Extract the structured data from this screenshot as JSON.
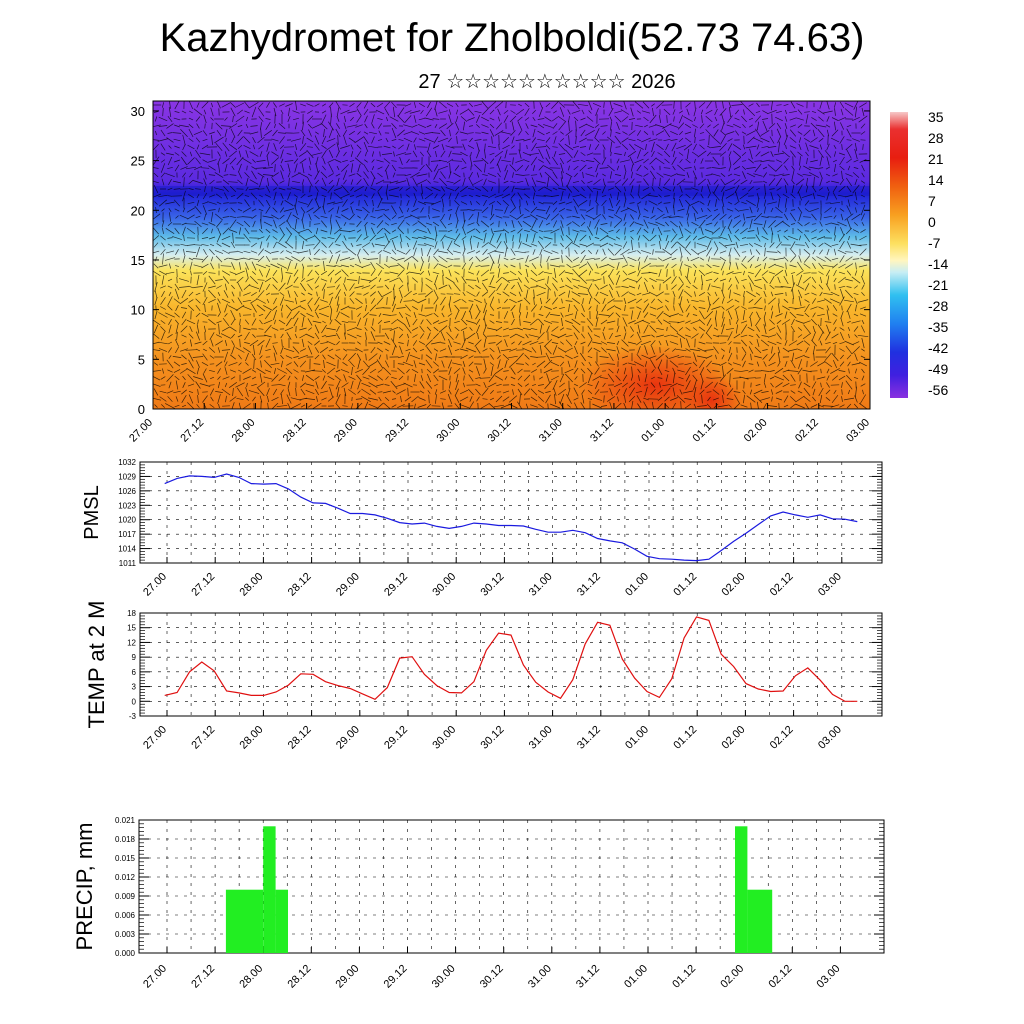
{
  "page": {
    "title": "Kazhydromet for Zholboldi(52.73 74.63)",
    "subtitle": "27 ☆☆☆☆☆☆☆☆☆☆ 2026"
  },
  "colors": {
    "pmsl_line": "#1a1adf",
    "temp_line": "#e01010",
    "precip_bar": "#22ee22",
    "wind_vectors": "#000000"
  },
  "chart_data": [
    {
      "type": "heatmap",
      "name": "cross-section",
      "description_variable": "temperature with wind vectors",
      "x_tick_labels": [
        "27.00",
        "27.12",
        "28.00",
        "28.12",
        "29.00",
        "29.12",
        "30.00",
        "30.12",
        "31.00",
        "31.12",
        "01.00",
        "01.12",
        "02.00",
        "02.12",
        "03.00"
      ],
      "y_ticks": [
        0,
        5,
        10,
        15,
        20,
        25,
        30
      ],
      "ylim": [
        0,
        31
      ],
      "colorbar_labels": [
        "35",
        "28",
        "21",
        "14",
        "7",
        "0",
        "-7",
        "-14",
        "-21",
        "-28",
        "-35",
        "-42",
        "-49",
        "-56"
      ],
      "colorbar_range": [
        -63,
        42
      ]
    },
    {
      "type": "line",
      "name": "pmsl",
      "ylabel": "PMSL",
      "x_tick_labels": [
        "27.00",
        "27.12",
        "28.00",
        "28.12",
        "29.00",
        "29.12",
        "30.00",
        "30.12",
        "31.00",
        "31.12",
        "01.00",
        "01.12",
        "02.00",
        "02.12",
        "03.00"
      ],
      "y_ticks": [
        1011,
        1014,
        1017,
        1020,
        1023,
        1026,
        1029,
        1032
      ],
      "ylim": [
        1011,
        1032
      ],
      "x": [
        0,
        3,
        6,
        9,
        12,
        15,
        18,
        21,
        24,
        27,
        30,
        33,
        36,
        39,
        42,
        45,
        48,
        51,
        54,
        57,
        60,
        63,
        66,
        69,
        72,
        75,
        78,
        81,
        84,
        87,
        90,
        93,
        96,
        99,
        102,
        105,
        108,
        111,
        114,
        117,
        120,
        123,
        126,
        129,
        132,
        135,
        138,
        141,
        144,
        147,
        150,
        153,
        156,
        159,
        162,
        165,
        168
      ],
      "values": [
        1027.5,
        1028.6,
        1029.1,
        1029.0,
        1028.8,
        1029.5,
        1028.8,
        1027.5,
        1027.4,
        1027.5,
        1026.4,
        1024.7,
        1023.5,
        1023.4,
        1022.4,
        1021.3,
        1021.3,
        1021.0,
        1020.3,
        1019.4,
        1019.1,
        1019.3,
        1018.6,
        1018.2,
        1018.6,
        1019.3,
        1019.1,
        1018.8,
        1018.8,
        1018.7,
        1018.0,
        1017.4,
        1017.4,
        1017.8,
        1017.3,
        1016.1,
        1015.6,
        1015.2,
        1013.9,
        1012.4,
        1011.9,
        1011.8,
        1011.6,
        1011.5,
        1011.8,
        1013.6,
        1015.5,
        1017.2,
        1019.0,
        1020.8,
        1021.6,
        1021.0,
        1020.5,
        1021.0,
        1020.2,
        1020.1,
        1019.6
      ],
      "xlim": [
        -6,
        174
      ]
    },
    {
      "type": "line",
      "name": "temperature",
      "ylabel": "TEMP at 2 M",
      "x_tick_labels": [
        "27.00",
        "27.12",
        "28.00",
        "28.12",
        "29.00",
        "29.12",
        "30.00",
        "30.12",
        "31.00",
        "31.12",
        "01.00",
        "01.12",
        "02.00",
        "02.12",
        "03.00"
      ],
      "y_ticks": [
        -3,
        0,
        3,
        6,
        9,
        12,
        15,
        18
      ],
      "ylim": [
        -3,
        18
      ],
      "x": [
        0,
        3,
        6,
        9,
        12,
        15,
        18,
        21,
        24,
        27,
        30,
        33,
        36,
        39,
        42,
        45,
        48,
        51,
        54,
        57,
        60,
        63,
        66,
        69,
        72,
        75,
        78,
        81,
        84,
        87,
        90,
        93,
        96,
        99,
        102,
        105,
        108,
        111,
        114,
        117,
        120,
        123,
        126,
        129,
        132,
        135,
        138,
        141,
        144,
        147,
        150,
        153,
        156,
        159,
        162,
        165,
        168
      ],
      "values": [
        1.2,
        1.8,
        6.0,
        8.0,
        6.2,
        2.1,
        1.7,
        1.2,
        1.2,
        1.9,
        3.3,
        5.6,
        5.5,
        4.0,
        3.2,
        2.6,
        1.5,
        0.4,
        2.8,
        8.8,
        9.1,
        5.5,
        3.2,
        1.8,
        1.7,
        4.0,
        10.4,
        13.9,
        13.5,
        7.4,
        3.9,
        1.9,
        0.6,
        4.4,
        11.7,
        16.1,
        15.5,
        8.6,
        4.7,
        2.0,
        0.8,
        4.6,
        12.9,
        17.2,
        16.5,
        9.6,
        7.1,
        3.6,
        2.5,
        2.0,
        2.1,
        5.2,
        6.8,
        4.3,
        1.4,
        0.0,
        0.0
      ],
      "xlim": [
        -6,
        174
      ]
    },
    {
      "type": "bar",
      "name": "precipitation",
      "ylabel": "PRECIP, mm",
      "x_tick_labels": [
        "27.00",
        "27.12",
        "28.00",
        "28.12",
        "29.00",
        "29.12",
        "30.00",
        "30.12",
        "31.00",
        "31.12",
        "01.00",
        "01.12",
        "02.00",
        "02.12",
        "03.00"
      ],
      "y_ticks": [
        "0.000",
        "0.003",
        "0.006",
        "0.009",
        "0.012",
        "0.015",
        "0.018",
        "0.021"
      ],
      "ylim": [
        0,
        0.021
      ],
      "xlim": [
        -6,
        174
      ],
      "bars": [
        {
          "x0": 15,
          "x1": 24,
          "value": 0.01
        },
        {
          "x0": 24,
          "x1": 27,
          "value": 0.02
        },
        {
          "x0": 27,
          "x1": 30,
          "value": 0.01
        },
        {
          "x0": 138,
          "x1": 141,
          "value": 0.02
        },
        {
          "x0": 141,
          "x1": 147,
          "value": 0.01
        }
      ]
    }
  ]
}
